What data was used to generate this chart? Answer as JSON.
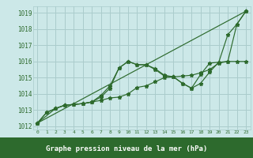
{
  "bg_color": "#cce8e8",
  "plot_bg_color": "#cce8e8",
  "grid_color": "#aacccc",
  "line_color": "#2d6a2d",
  "xlabel": "Graphe pression niveau de la mer (hPa)",
  "xlabel_bg": "#2d6a2d",
  "xlabel_fg": "#ffffff",
  "ylim": [
    1011.8,
    1019.4
  ],
  "xlim": [
    -0.5,
    23.5
  ],
  "yticks": [
    1012,
    1013,
    1014,
    1015,
    1016,
    1017,
    1018,
    1019
  ],
  "xticks": [
    0,
    1,
    2,
    3,
    4,
    5,
    6,
    7,
    8,
    9,
    10,
    11,
    12,
    13,
    14,
    15,
    16,
    17,
    18,
    19,
    20,
    21,
    22,
    23
  ],
  "series": [
    {
      "x": [
        0,
        1,
        2,
        3,
        4,
        5,
        6,
        7,
        8,
        9,
        10,
        11,
        12,
        13,
        14,
        15,
        16,
        17,
        18,
        19,
        20,
        21,
        22,
        23
      ],
      "y": [
        1012.2,
        1012.85,
        1013.1,
        1013.3,
        1013.35,
        1013.4,
        1013.5,
        1013.6,
        1013.75,
        1013.8,
        1014.0,
        1014.4,
        1014.5,
        1014.75,
        1015.0,
        1015.05,
        1015.1,
        1015.15,
        1015.3,
        1015.5,
        1015.9,
        1016.0,
        1016.0,
        1016.0
      ]
    },
    {
      "x": [
        0,
        1,
        2,
        3,
        4,
        5,
        6,
        7,
        8,
        9,
        10,
        11,
        12,
        13,
        14,
        15,
        16,
        17,
        18,
        19,
        20,
        21,
        22,
        23
      ],
      "y": [
        1012.2,
        1012.85,
        1013.1,
        1013.3,
        1013.35,
        1013.4,
        1013.5,
        1013.8,
        1014.35,
        1015.6,
        1016.0,
        1015.8,
        1015.8,
        1015.55,
        1015.15,
        1015.05,
        1014.65,
        1014.35,
        1015.2,
        1015.9,
        1015.95,
        1017.65,
        1018.3,
        1019.1
      ]
    },
    {
      "x": [
        0,
        2,
        3,
        4,
        5,
        6,
        7,
        8,
        9,
        10,
        11,
        12,
        13,
        14,
        15,
        16,
        17,
        18,
        19,
        20,
        21,
        22,
        23
      ],
      "y": [
        1012.2,
        1013.1,
        1013.3,
        1013.35,
        1013.4,
        1013.5,
        1013.9,
        1014.5,
        1015.6,
        1016.0,
        1015.8,
        1015.8,
        1015.5,
        1015.1,
        1015.05,
        1014.65,
        1014.35,
        1014.65,
        1015.35,
        1015.95,
        1016.0,
        1018.3,
        1019.1
      ]
    },
    {
      "x": [
        0,
        23
      ],
      "y": [
        1012.2,
        1019.1
      ]
    }
  ]
}
